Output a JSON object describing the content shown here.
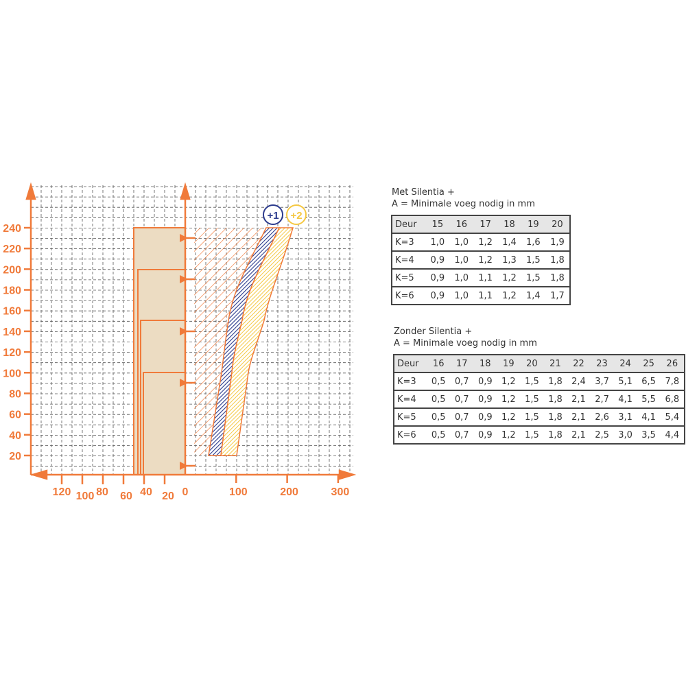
{
  "diagram": {
    "colors": {
      "orange": "#f07a3a",
      "blue": "#2b3a8c",
      "yellow": "#f5c842",
      "beige": "#ecdcc2",
      "grid": "#555555"
    },
    "y_ticks": [
      "20",
      "40",
      "60",
      "80",
      "100",
      "120",
      "140",
      "160",
      "180",
      "200",
      "220",
      "240"
    ],
    "x_ticks_right": [
      "0",
      "100",
      "200",
      "300"
    ],
    "x_ticks_left": [
      "120",
      "100",
      "80",
      "60",
      "40",
      "20"
    ],
    "badges": [
      {
        "label": "+1",
        "color": "#2b3a8c"
      },
      {
        "label": "+2",
        "color": "#f5c842"
      }
    ]
  },
  "table_met": {
    "caption_line1": "Met Silentia +",
    "caption_line2": "A = Minimale voeg nodig in mm",
    "header": [
      "Deur",
      "15",
      "16",
      "17",
      "18",
      "19",
      "20"
    ],
    "rows": [
      [
        "K=3",
        "1,0",
        "1,0",
        "1,2",
        "1,4",
        "1,6",
        "1,9"
      ],
      [
        "K=4",
        "0,9",
        "1,0",
        "1,2",
        "1,3",
        "1,5",
        "1,8"
      ],
      [
        "K=5",
        "0,9",
        "1,0",
        "1,1",
        "1,2",
        "1,5",
        "1,8"
      ],
      [
        "K=6",
        "0,9",
        "1,0",
        "1,1",
        "1,2",
        "1,4",
        "1,7"
      ]
    ]
  },
  "table_zonder": {
    "caption_line1": "Zonder Silentia +",
    "caption_line2": "A = Minimale voeg nodig in mm",
    "header": [
      "Deur",
      "16",
      "17",
      "18",
      "19",
      "20",
      "21",
      "22",
      "23",
      "24",
      "25",
      "26"
    ],
    "rows": [
      [
        "K=3",
        "0,5",
        "0,7",
        "0,9",
        "1,2",
        "1,5",
        "1,8",
        "2,4",
        "3,7",
        "5,1",
        "6,5",
        "7,8"
      ],
      [
        "K=4",
        "0,5",
        "0,7",
        "0,9",
        "1,2",
        "1,5",
        "1,8",
        "2,1",
        "2,7",
        "4,1",
        "5,5",
        "6,8"
      ],
      [
        "K=5",
        "0,5",
        "0,7",
        "0,9",
        "1,2",
        "1,5",
        "1,8",
        "2,1",
        "2,6",
        "3,1",
        "4,1",
        "5,4"
      ],
      [
        "K=6",
        "0,5",
        "0,7",
        "0,9",
        "1,2",
        "1,5",
        "1,8",
        "2,1",
        "2,5",
        "3,0",
        "3,5",
        "4,4"
      ]
    ]
  }
}
